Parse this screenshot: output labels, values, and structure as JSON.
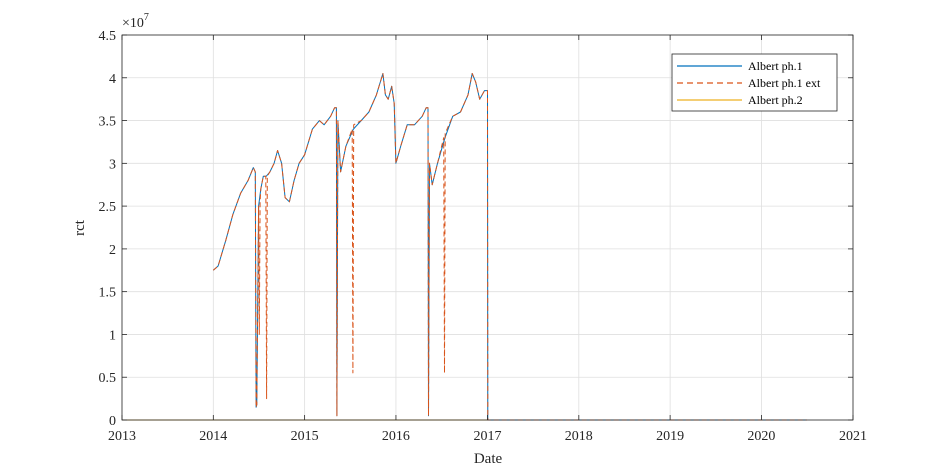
{
  "chart_data": {
    "type": "line",
    "xlabel": "Date",
    "ylabel": "rct",
    "exponent_label": "×10",
    "exponent_power": "7",
    "xlim": [
      "2013-01-01",
      "2021-01-01"
    ],
    "ylim": [
      0,
      45000000
    ],
    "x_ticks": [
      "2013",
      "2014",
      "2015",
      "2016",
      "2017",
      "2018",
      "2019",
      "2020",
      "2021"
    ],
    "y_ticks": [
      {
        "value": 0,
        "label": "0"
      },
      {
        "value": 5000000,
        "label": "0.5"
      },
      {
        "value": 10000000,
        "label": "1"
      },
      {
        "value": 15000000,
        "label": "1.5"
      },
      {
        "value": 20000000,
        "label": "2"
      },
      {
        "value": 25000000,
        "label": "2.5"
      },
      {
        "value": 30000000,
        "label": "3"
      },
      {
        "value": 35000000,
        "label": "3.5"
      },
      {
        "value": 40000000,
        "label": "4"
      },
      {
        "value": 45000000,
        "label": "4.5"
      }
    ],
    "grid": true,
    "legend_position": "top-right",
    "series": [
      {
        "name": "Albert ph.1",
        "color": "#0072bd",
        "style": "solid",
        "x": [
          "2014-01-01",
          "2014-01-20",
          "2014-02-20",
          "2014-03-20",
          "2014-04-20",
          "2014-05-20",
          "2014-06-10",
          "2014-06-18",
          "2014-06-21",
          "2014-06-24",
          "2014-07-01",
          "2014-07-10",
          "2014-07-20",
          "2014-08-01",
          "2014-08-15",
          "2014-09-01",
          "2014-09-15",
          "2014-10-01",
          "2014-10-15",
          "2014-11-01",
          "2014-11-20",
          "2014-12-10",
          "2015-01-01",
          "2015-02-01",
          "2015-03-01",
          "2015-03-20",
          "2015-04-15",
          "2015-05-01",
          "2015-05-08",
          "2015-05-10",
          "2015-05-14",
          "2015-05-25",
          "2015-06-15",
          "2015-07-15",
          "2015-08-15",
          "2015-09-15",
          "2015-10-15",
          "2015-11-10",
          "2015-11-20",
          "2015-12-01",
          "2015-12-15",
          "2015-12-25",
          "2016-01-01",
          "2016-01-20",
          "2016-02-15",
          "2016-03-15",
          "2016-04-15",
          "2016-05-01",
          "2016-05-08",
          "2016-05-10",
          "2016-05-14",
          "2016-05-25",
          "2016-06-15",
          "2016-07-15",
          "2016-08-15",
          "2016-09-15",
          "2016-10-15",
          "2016-11-01",
          "2016-11-15",
          "2016-12-01",
          "2016-12-20",
          "2016-12-30",
          "2017-01-01",
          "2017-01-02",
          "2020-07-01"
        ],
        "y": [
          17500000,
          18000000,
          21000000,
          24000000,
          26500000,
          28000000,
          29500000,
          29000000,
          1500000,
          1800000,
          25000000,
          27000000,
          28500000,
          28500000,
          29000000,
          30000000,
          31500000,
          30000000,
          26000000,
          25500000,
          28000000,
          30000000,
          31000000,
          34000000,
          35000000,
          34500000,
          35500000,
          36500000,
          36500000,
          500000,
          35000000,
          29000000,
          32000000,
          34000000,
          35000000,
          36000000,
          38000000,
          40500000,
          38000000,
          37500000,
          39000000,
          37000000,
          30000000,
          32000000,
          34500000,
          34500000,
          35500000,
          36500000,
          36500000,
          500000,
          30000000,
          27500000,
          30000000,
          33000000,
          35500000,
          36000000,
          38000000,
          40500000,
          39500000,
          37500000,
          38500000,
          38500000,
          38500000,
          0,
          0
        ]
      },
      {
        "name": "Albert ph.1 ext",
        "color": "#d95319",
        "style": "dashed",
        "x": [
          "2014-01-01",
          "2014-01-20",
          "2014-02-20",
          "2014-03-20",
          "2014-04-20",
          "2014-05-20",
          "2014-06-10",
          "2014-06-18",
          "2014-06-21",
          "2014-06-24",
          "2014-07-01",
          "2014-07-04",
          "2014-07-07",
          "2014-07-10",
          "2014-07-20",
          "2014-07-30",
          "2014-08-02",
          "2014-08-05",
          "2014-08-15",
          "2014-09-01",
          "2014-09-15",
          "2014-10-01",
          "2014-10-15",
          "2014-11-01",
          "2014-11-20",
          "2014-12-10",
          "2015-01-01",
          "2015-02-01",
          "2015-03-01",
          "2015-03-20",
          "2015-04-15",
          "2015-05-01",
          "2015-05-08",
          "2015-05-10",
          "2015-05-14",
          "2015-05-25",
          "2015-06-15",
          "2015-07-10",
          "2015-07-13",
          "2015-07-16",
          "2015-08-15",
          "2015-09-15",
          "2015-10-15",
          "2015-11-10",
          "2015-11-20",
          "2015-12-01",
          "2015-12-15",
          "2015-12-25",
          "2016-01-01",
          "2016-01-20",
          "2016-02-15",
          "2016-03-15",
          "2016-04-15",
          "2016-05-01",
          "2016-05-08",
          "2016-05-10",
          "2016-05-14",
          "2016-05-25",
          "2016-06-15",
          "2016-07-10",
          "2016-07-13",
          "2016-07-16",
          "2016-08-15",
          "2016-09-15",
          "2016-10-15",
          "2016-11-01",
          "2016-11-15",
          "2016-12-01",
          "2016-12-20",
          "2016-12-30",
          "2017-01-01",
          "2017-01-02",
          "2020-07-01"
        ],
        "y": [
          17500000,
          18000000,
          21000000,
          24000000,
          26500000,
          28000000,
          29500000,
          29000000,
          1500000,
          1800000,
          25000000,
          10000000,
          25500000,
          27000000,
          28500000,
          28500000,
          2500000,
          28500000,
          29000000,
          30000000,
          31500000,
          30000000,
          26000000,
          25500000,
          28000000,
          30000000,
          31000000,
          34000000,
          35000000,
          34500000,
          35500000,
          36500000,
          36500000,
          500000,
          35000000,
          29000000,
          32000000,
          34000000,
          5500000,
          34500000,
          35000000,
          36000000,
          38000000,
          40500000,
          38000000,
          37500000,
          39000000,
          37000000,
          30000000,
          32000000,
          34500000,
          34500000,
          35500000,
          36500000,
          36500000,
          500000,
          30000000,
          27500000,
          30000000,
          33000000,
          5500000,
          33500000,
          35500000,
          36000000,
          38000000,
          40500000,
          39500000,
          37500000,
          38500000,
          38500000,
          38500000,
          0,
          0
        ]
      },
      {
        "name": "Albert ph.2",
        "color": "#edb120",
        "style": "solid",
        "x": [
          "2013-01-01",
          "2020-07-01"
        ],
        "y": [
          0,
          0
        ]
      }
    ]
  }
}
